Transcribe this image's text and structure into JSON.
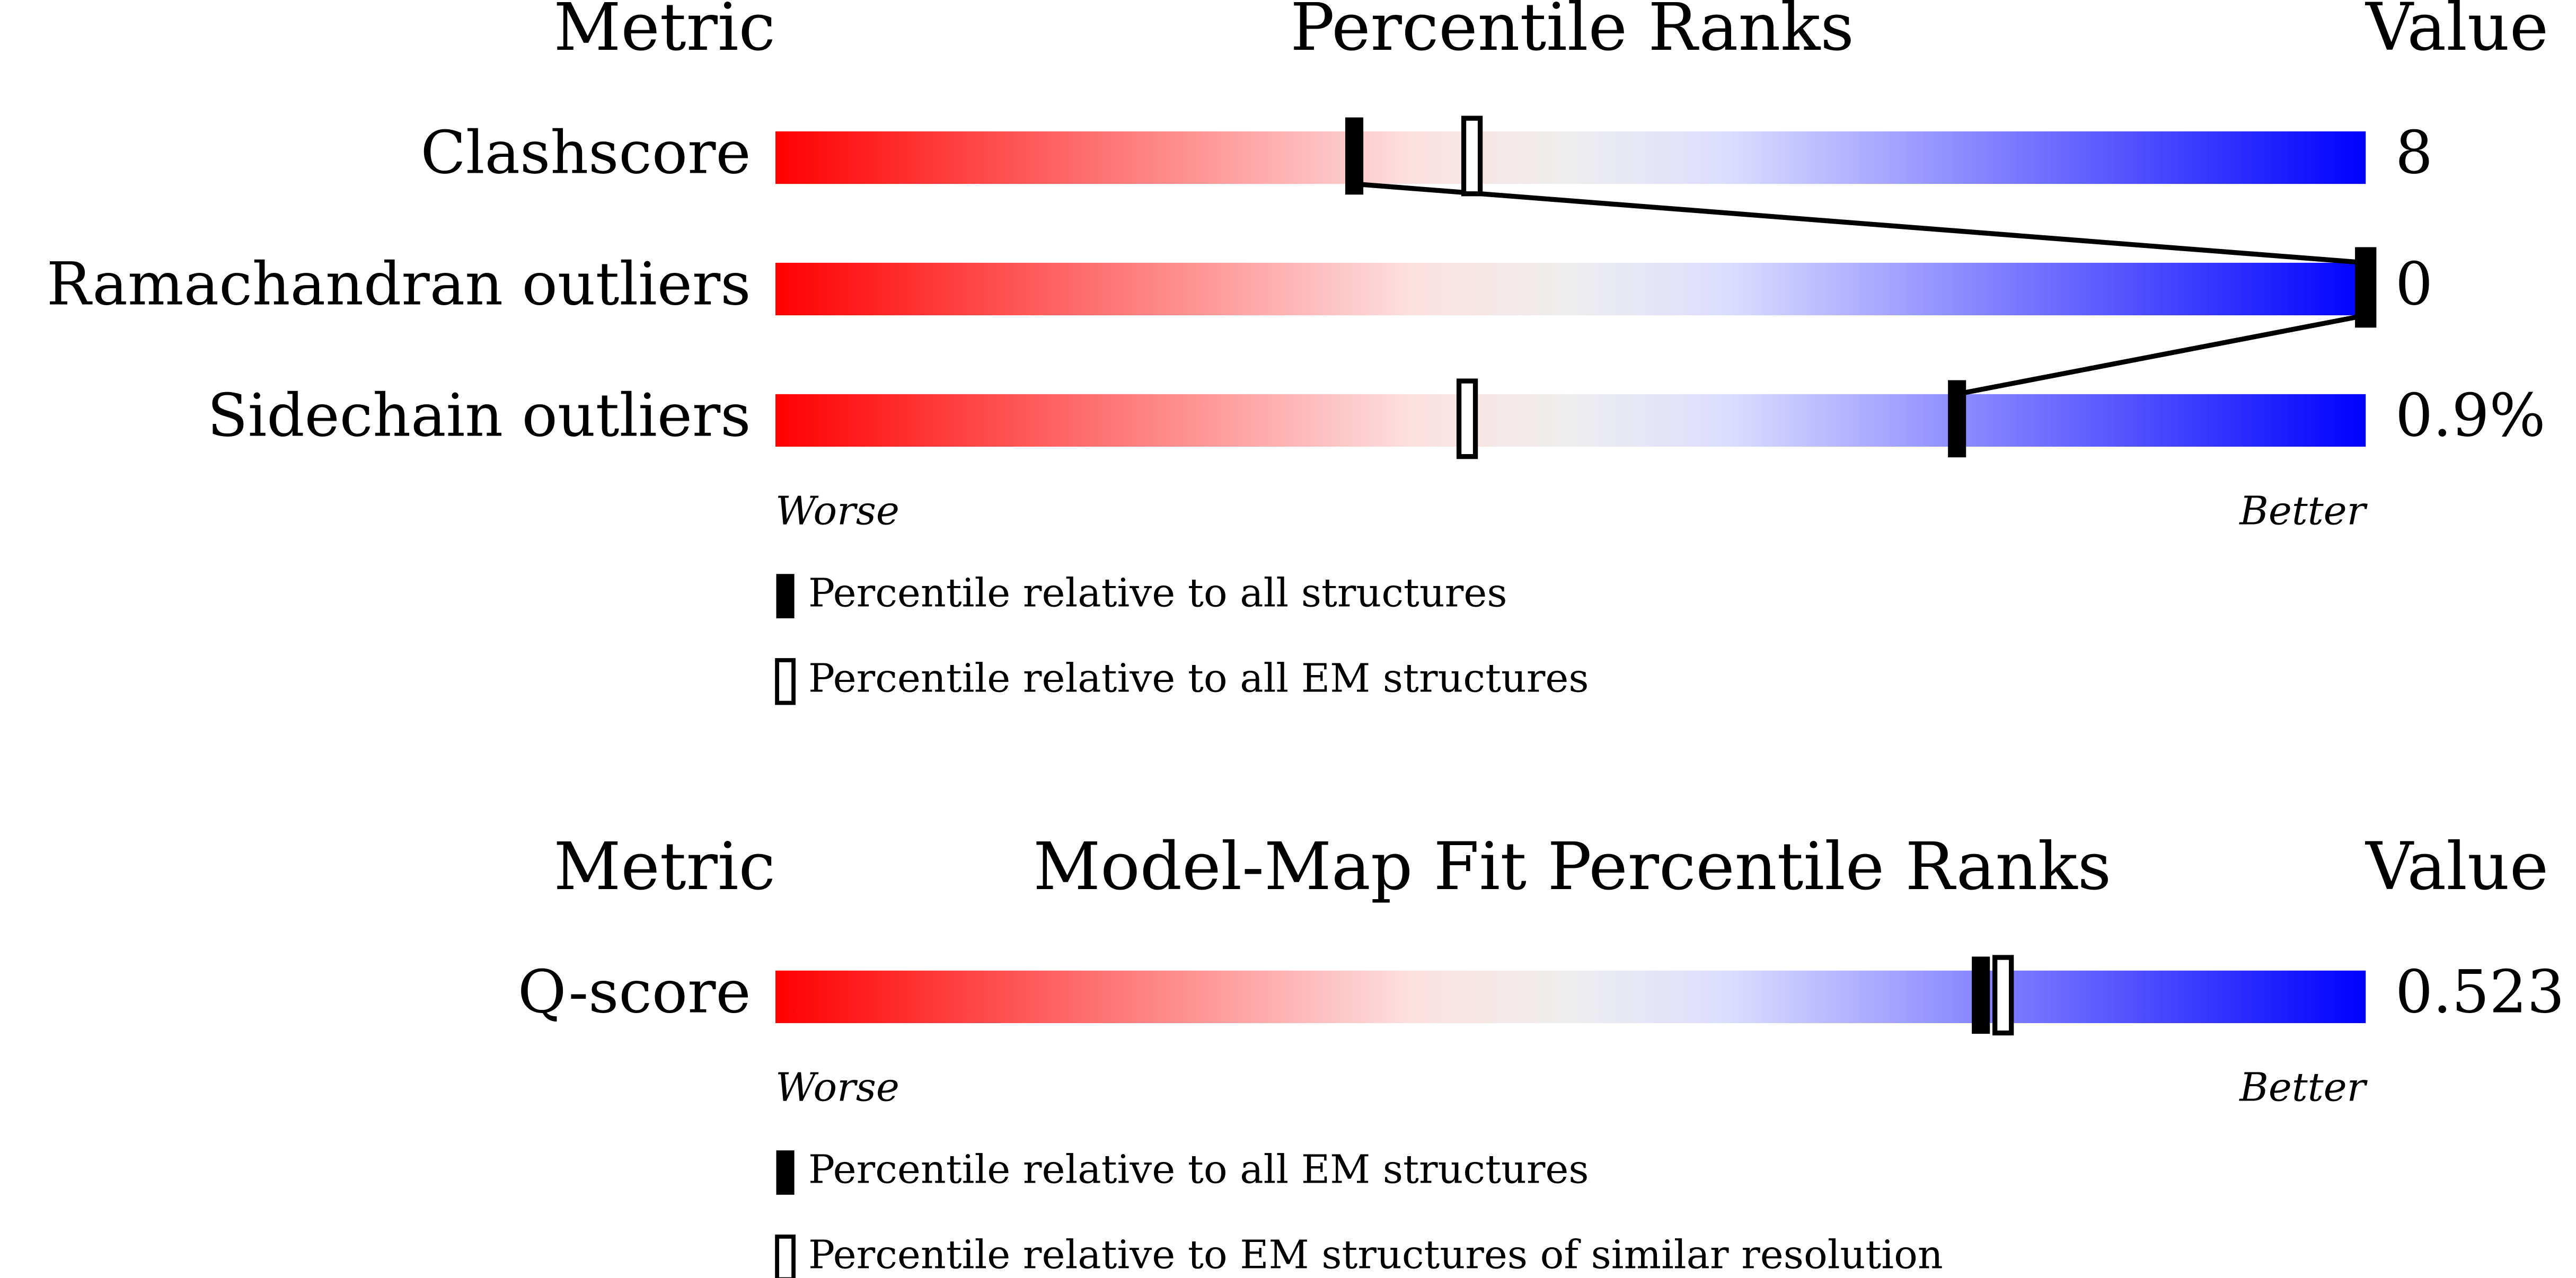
{
  "chart_data": [
    {
      "type": "percentile-slider",
      "title": "Percentile Ranks",
      "metric_header": "Metric",
      "value_header": "Value",
      "categories": [
        "Clashscore",
        "Ramachandran outliers",
        "Sidechain outliers"
      ],
      "metric_values": [
        "8",
        "0",
        "0.9%"
      ],
      "xlim": [
        0,
        100
      ],
      "low_label": "Worse",
      "high_label": "Better",
      "series": [
        {
          "name": "Percentile relative to all structures",
          "style": "filled",
          "values": [
            36.4,
            100,
            74.3
          ]
        },
        {
          "name": "Percentile relative to all EM structures",
          "style": "open",
          "values": [
            43.8,
            100,
            43.5
          ]
        }
      ]
    },
    {
      "type": "percentile-slider",
      "title": "Model-Map Fit Percentile Ranks",
      "metric_header": "Metric",
      "value_header": "Value",
      "categories": [
        "Q-score"
      ],
      "metric_values": [
        "0.523"
      ],
      "xlim": [
        0,
        100
      ],
      "low_label": "Worse",
      "high_label": "Better",
      "series": [
        {
          "name": "Percentile relative to all EM structures",
          "style": "filled",
          "values": [
            75.8
          ]
        },
        {
          "name": "Percentile relative to EM structures of similar resolution",
          "style": "open",
          "values": [
            77.2
          ]
        }
      ]
    }
  ]
}
